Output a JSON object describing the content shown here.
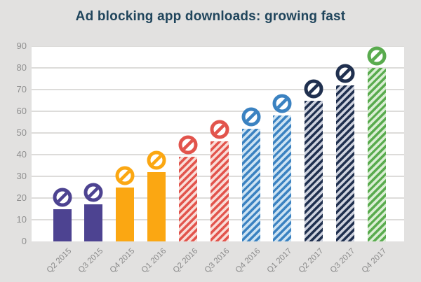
{
  "title": "Ad blocking app downloads: growing fast",
  "colors": {
    "background": "#e2e1e0",
    "plot_background": "#ffffff",
    "title_text": "#20455c",
    "gridline": "#dddcda",
    "axis_label": "#8f8f8f"
  },
  "chart_data": {
    "type": "bar",
    "title": "Ad blocking app downloads: growing fast",
    "categories": [
      "Q2 2015",
      "Q3 2015",
      "Q4 2015",
      "Q1 2016",
      "Q2 2016",
      "Q3 2016",
      "Q4 2016",
      "Q1 2017",
      "Q2 2017",
      "Q3 2017",
      "Q4 2017"
    ],
    "values": [
      15,
      17,
      25,
      32,
      39,
      46,
      52,
      58,
      65,
      72,
      80
    ],
    "xlabel": "",
    "ylabel": "",
    "ylim": [
      0,
      90
    ],
    "y_ticks": [
      0,
      10,
      20,
      30,
      40,
      50,
      60,
      70,
      80,
      90
    ],
    "grid": "horizontal",
    "legend": "none",
    "marker_icon": "no-sign-icon",
    "styles": [
      {
        "pattern": "solid",
        "color": "#4d4391",
        "light": "#4d4391"
      },
      {
        "pattern": "solid",
        "color": "#4d4391",
        "light": "#4d4391"
      },
      {
        "pattern": "solid",
        "color": "#fba712",
        "light": "#fba712"
      },
      {
        "pattern": "solid",
        "color": "#fba712",
        "light": "#fba712"
      },
      {
        "pattern": "striped",
        "color": "#e2544c",
        "light": "#f9dcd7"
      },
      {
        "pattern": "striped",
        "color": "#e2544c",
        "light": "#f9dcd7"
      },
      {
        "pattern": "striped",
        "color": "#3b82c1",
        "light": "#cde3f3"
      },
      {
        "pattern": "striped",
        "color": "#3b82c1",
        "light": "#cde3f3"
      },
      {
        "pattern": "striped",
        "color": "#20304f",
        "light": "#ced2de"
      },
      {
        "pattern": "striped",
        "color": "#20304f",
        "light": "#ced2de"
      },
      {
        "pattern": "striped",
        "color": "#59ab4e",
        "light": "#daeed4"
      }
    ]
  }
}
